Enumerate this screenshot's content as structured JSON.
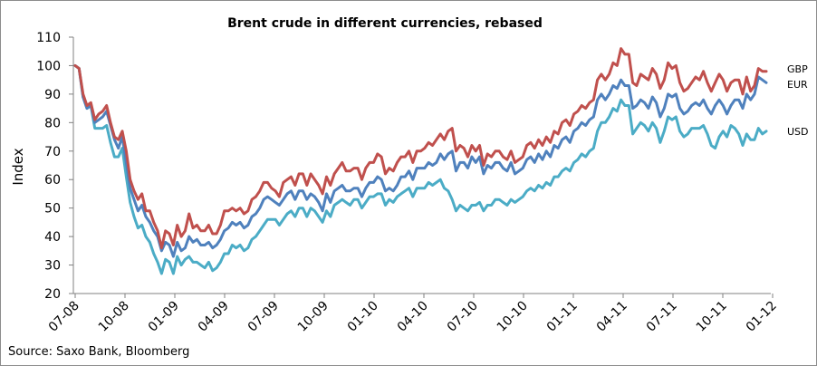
{
  "chart_data": {
    "type": "line",
    "title": "Brent crude in different currencies, rebased",
    "xlabel": "",
    "ylabel": "Index",
    "ylim": [
      20,
      110
    ],
    "yticks": [
      20,
      30,
      40,
      50,
      60,
      70,
      80,
      90,
      100,
      110
    ],
    "x_tick_labels": [
      "07-08",
      "10-08",
      "01-09",
      "04-09",
      "07-09",
      "10-09",
      "01-10",
      "04-10",
      "07-10",
      "10-10",
      "01-11",
      "04-11",
      "07-11",
      "10-11",
      "01-12"
    ],
    "grid": false,
    "legend": "labels at right end of each line",
    "series": [
      {
        "name": "GBP",
        "color": "#c0504d",
        "values": [
          100,
          99,
          90,
          86,
          87,
          81,
          83,
          84,
          86,
          80,
          75,
          74,
          77,
          70,
          60,
          56,
          53,
          55,
          49,
          49,
          45,
          42,
          36,
          42,
          41,
          37,
          44,
          40,
          42,
          48,
          43,
          44,
          42,
          42,
          44,
          41,
          41,
          44,
          49,
          49,
          50,
          49,
          50,
          48,
          49,
          53,
          54,
          56,
          59,
          59,
          57,
          56,
          54,
          59,
          60,
          61,
          58,
          62,
          62,
          58,
          62,
          60,
          58,
          55,
          61,
          58,
          62,
          64,
          66,
          63,
          63,
          64,
          64,
          60,
          64,
          66,
          66,
          69,
          68,
          62,
          64,
          63,
          66,
          68,
          68,
          70,
          66,
          70,
          70,
          71,
          73,
          72,
          74,
          76,
          74,
          77,
          78,
          70,
          72,
          71,
          68,
          72,
          70,
          72,
          65,
          69,
          68,
          70,
          70,
          68,
          67,
          70,
          66,
          67,
          68,
          72,
          73,
          71,
          74,
          72,
          75,
          73,
          77,
          76,
          80,
          81,
          79,
          83,
          84,
          86,
          85,
          87,
          88,
          95,
          97,
          95,
          97,
          101,
          100,
          106,
          104,
          104,
          94,
          93,
          97,
          96,
          95,
          99,
          97,
          92,
          95,
          101,
          99,
          100,
          94,
          91,
          92,
          94,
          96,
          95,
          98,
          94,
          91,
          94,
          97,
          95,
          91,
          94,
          95,
          95,
          90,
          96,
          91,
          93,
          99,
          98,
          98
        ]
      },
      {
        "name": "EUR",
        "color": "#4f81bd",
        "values": [
          100,
          99,
          89,
          85,
          86,
          80,
          81,
          82,
          84,
          79,
          74,
          71,
          75,
          66,
          57,
          53,
          49,
          51,
          47,
          45,
          42,
          40,
          35,
          38,
          37,
          33,
          38,
          35,
          36,
          40,
          38,
          39,
          37,
          37,
          38,
          36,
          37,
          39,
          42,
          43,
          45,
          44,
          45,
          43,
          44,
          47,
          48,
          50,
          53,
          54,
          53,
          52,
          51,
          53,
          55,
          56,
          53,
          56,
          56,
          53,
          55,
          54,
          52,
          49,
          55,
          52,
          56,
          57,
          58,
          56,
          56,
          57,
          57,
          54,
          57,
          59,
          59,
          61,
          60,
          56,
          57,
          56,
          58,
          61,
          61,
          63,
          60,
          64,
          64,
          64,
          66,
          65,
          66,
          69,
          67,
          69,
          70,
          63,
          66,
          66,
          64,
          68,
          66,
          68,
          62,
          65,
          64,
          66,
          66,
          64,
          63,
          66,
          62,
          63,
          64,
          67,
          68,
          66,
          69,
          67,
          70,
          68,
          72,
          71,
          74,
          75,
          73,
          77,
          78,
          80,
          79,
          81,
          82,
          88,
          90,
          88,
          90,
          93,
          92,
          95,
          93,
          93,
          85,
          86,
          88,
          87,
          85,
          89,
          87,
          82,
          85,
          90,
          89,
          90,
          85,
          83,
          84,
          86,
          87,
          86,
          88,
          85,
          83,
          86,
          88,
          86,
          83,
          86,
          88,
          88,
          85,
          90,
          88,
          90,
          96,
          95,
          94
        ]
      },
      {
        "name": "USD",
        "color": "#4bacc6",
        "values": [
          100,
          99,
          89,
          85,
          86,
          78,
          78,
          78,
          79,
          73,
          68,
          68,
          71,
          61,
          52,
          47,
          43,
          44,
          40,
          38,
          34,
          31,
          27,
          32,
          31,
          27,
          33,
          30,
          32,
          33,
          31,
          31,
          30,
          29,
          31,
          28,
          29,
          31,
          34,
          34,
          37,
          36,
          37,
          35,
          36,
          39,
          40,
          42,
          44,
          46,
          46,
          46,
          44,
          46,
          48,
          49,
          47,
          50,
          50,
          47,
          50,
          49,
          47,
          45,
          49,
          47,
          51,
          52,
          53,
          52,
          51,
          53,
          53,
          50,
          52,
          54,
          54,
          55,
          55,
          51,
          53,
          52,
          54,
          55,
          56,
          57,
          54,
          57,
          57,
          57,
          59,
          58,
          59,
          60,
          57,
          56,
          53,
          49,
          51,
          50,
          49,
          51,
          51,
          52,
          49,
          51,
          51,
          53,
          53,
          52,
          51,
          53,
          52,
          53,
          54,
          56,
          57,
          56,
          58,
          57,
          59,
          58,
          61,
          61,
          63,
          64,
          63,
          66,
          67,
          69,
          68,
          70,
          71,
          77,
          80,
          80,
          82,
          85,
          84,
          88,
          86,
          86,
          76,
          78,
          80,
          79,
          77,
          80,
          78,
          73,
          77,
          82,
          81,
          82,
          77,
          75,
          76,
          78,
          78,
          78,
          79,
          76,
          72,
          71,
          75,
          77,
          75,
          79,
          78,
          76,
          72,
          76,
          74,
          74,
          78,
          76,
          77
        ]
      }
    ]
  },
  "source": "Source: Saxo Bank, Bloomberg"
}
